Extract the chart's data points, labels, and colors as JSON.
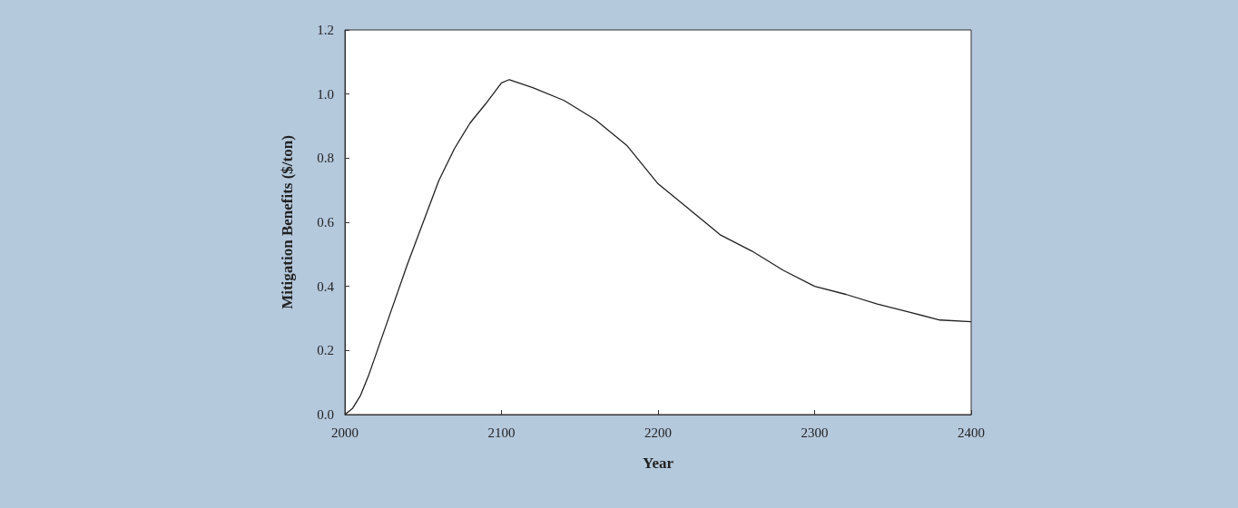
{
  "chart_data": {
    "type": "line",
    "xlabel": "Year",
    "ylabel": "Mitigation Benefits ($/ton)",
    "x": [
      2000,
      2005,
      2010,
      2015,
      2020,
      2030,
      2040,
      2050,
      2060,
      2070,
      2080,
      2090,
      2100,
      2105,
      2120,
      2140,
      2160,
      2180,
      2200,
      2220,
      2240,
      2260,
      2280,
      2300,
      2320,
      2340,
      2360,
      2380,
      2400
    ],
    "series": [
      {
        "color": "#222222",
        "values": [
          0,
          0.02,
          0.06,
          0.12,
          0.19,
          0.33,
          0.47,
          0.6,
          0.73,
          0.83,
          0.91,
          0.97,
          1.035,
          1.045,
          1.02,
          0.98,
          0.92,
          0.84,
          0.72,
          0.64,
          0.56,
          0.51,
          0.45,
          0.4,
          0.375,
          0.345,
          0.32,
          0.295,
          0.29
        ]
      }
    ],
    "xlim": [
      2000,
      2400
    ],
    "xticks": [
      2000,
      2100,
      2200,
      2300,
      2400
    ],
    "ylim": [
      0,
      1.2
    ],
    "yticks": [
      {
        "value": 0,
        "label": "0.0"
      },
      {
        "value": 0.2,
        "label": "0.2"
      },
      {
        "value": 0.4,
        "label": "0.4"
      },
      {
        "value": 0.6,
        "label": "0.6"
      },
      {
        "value": 0.8,
        "label": "0.8"
      },
      {
        "value": 1,
        "label": "1.0"
      },
      {
        "value": 1.2,
        "label": "1.2"
      }
    ],
    "grid": false,
    "marker": "none",
    "line_style": "solid"
  }
}
